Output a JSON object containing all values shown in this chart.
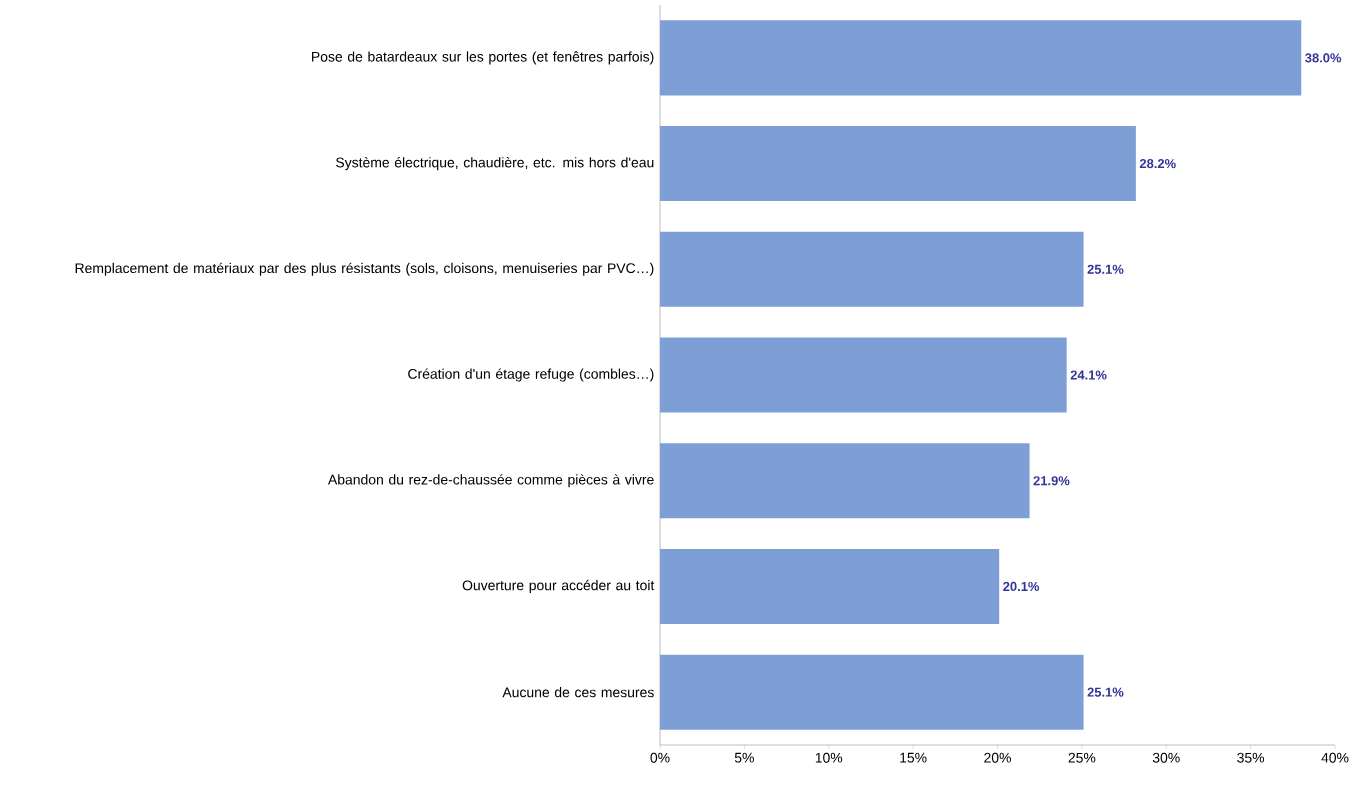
{
  "chart_data": {
    "type": "bar",
    "orientation": "horizontal",
    "categories": [
      "Pose de batardeaux sur les portes (et fenêtres parfois)",
      "Système électrique, chaudière, etc. mis hors d'eau",
      "Remplacement de matériaux par des plus résistants (sols, cloisons, menuiseries par PVC…)",
      "Création d'un étage refuge (combles…)",
      "Abandon du rez-de-chaussée comme pièces à vivre",
      "Ouverture pour accéder au toit",
      "Aucune de ces mesures"
    ],
    "values": [
      38.0,
      28.2,
      25.1,
      24.1,
      21.9,
      20.1,
      25.1
    ],
    "value_labels": [
      "38.0%",
      "28.2%",
      "25.1%",
      "24.1%",
      "21.9%",
      "20.1%",
      "25.1%"
    ],
    "color": "#7e9fd6",
    "xlim": [
      0,
      40
    ],
    "xticks": [
      {
        "value": 0,
        "label": "0%"
      },
      {
        "value": 5,
        "label": "5%"
      },
      {
        "value": 10,
        "label": "10%"
      },
      {
        "value": 15,
        "label": "15%"
      },
      {
        "value": 20,
        "label": "20%"
      },
      {
        "value": 25,
        "label": "25%"
      },
      {
        "value": 30,
        "label": "30%"
      },
      {
        "value": 35,
        "label": "35%"
      },
      {
        "value": 40,
        "label": "40%"
      }
    ],
    "grid": false
  }
}
